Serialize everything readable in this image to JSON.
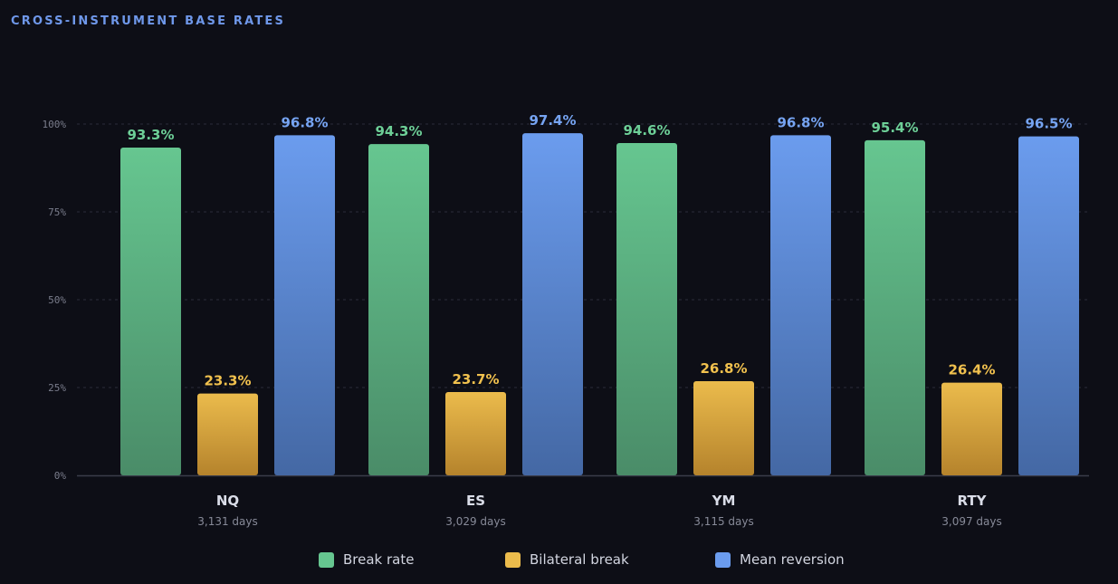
{
  "header": {
    "title": "CROSS-INSTRUMENT BASE RATES"
  },
  "chart_data": {
    "type": "bar",
    "title": "CROSS-INSTRUMENT BASE RATES",
    "categories": [
      "NQ",
      "ES",
      "YM",
      "RTY"
    ],
    "category_subtitles": [
      "3,131 days",
      "3,029 days",
      "3,115 days",
      "3,097 days"
    ],
    "ylim": [
      0,
      100
    ],
    "yticks": [
      0,
      25,
      50,
      75,
      100
    ],
    "ytick_labels": [
      "0%",
      "25%",
      "50%",
      "75%",
      "100%"
    ],
    "grid": true,
    "legend_position": "bottom",
    "series": [
      {
        "name": "Break rate",
        "values": [
          93.3,
          94.3,
          94.6,
          95.4
        ],
        "labels": [
          "93.3%",
          "94.3%",
          "94.6%",
          "95.4%"
        ],
        "color": "#66c690",
        "color_bottom": "#4a8c68",
        "label_color": "#6dcf97"
      },
      {
        "name": "Bilateral break",
        "values": [
          23.3,
          23.7,
          26.8,
          26.4
        ],
        "labels": [
          "23.3%",
          "23.7%",
          "26.8%",
          "26.4%"
        ],
        "color": "#ebbb4c",
        "color_bottom": "#b5832c",
        "label_color": "#f1c14e"
      },
      {
        "name": "Mean reversion",
        "values": [
          96.8,
          97.4,
          96.8,
          96.5
        ],
        "labels": [
          "96.8%",
          "97.4%",
          "96.8%",
          "96.5%"
        ],
        "color": "#6b9cee",
        "color_bottom": "#4468a4",
        "label_color": "#76a4f2"
      }
    ]
  }
}
